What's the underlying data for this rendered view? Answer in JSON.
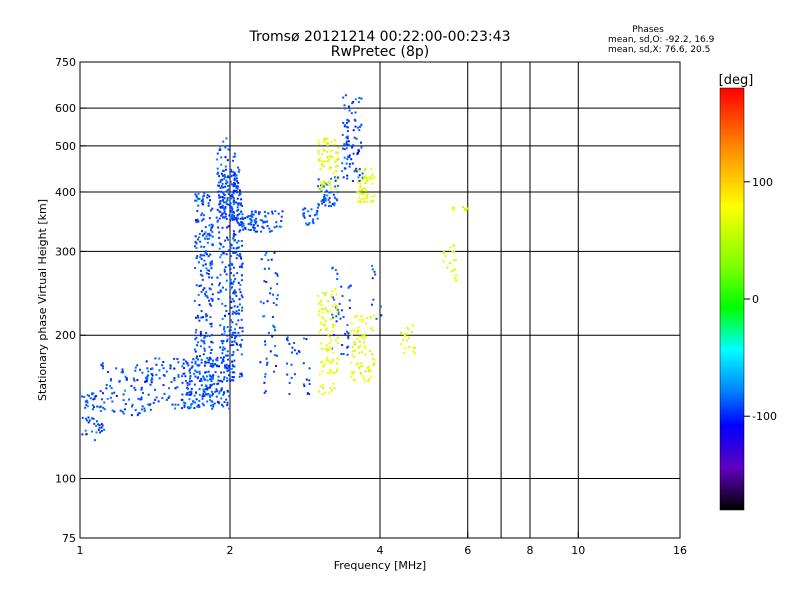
{
  "header": {
    "title_line1": "Tromsø 20121214 00:22:00-00:23:43",
    "title_line2": "RwPretec (8p)",
    "phases_label": "Phases",
    "phases_o": "mean, sd,O: -92.2, 16.9",
    "phases_x": "mean, sd,X: 76.6, 20.5"
  },
  "chart_data": {
    "type": "scatter",
    "title": "Tromsø 20121214 00:22:00-00:23:43",
    "subtitle": "RwPretec (8p)",
    "xlabel": "Frequency [MHz]",
    "ylabel": "Stationary phase Virtual Height [km]",
    "x_scale": "log",
    "y_scale": "log",
    "xlim": [
      1,
      16
    ],
    "ylim": [
      75,
      750
    ],
    "x_ticks": [
      {
        "value": 1,
        "label": "1"
      },
      {
        "value": 2,
        "label": "2"
      },
      {
        "value": 4,
        "label": "4"
      },
      {
        "value": 6,
        "label": "6"
      },
      {
        "value": 8,
        "label": "8"
      },
      {
        "value": 10,
        "label": "10"
      },
      {
        "value": 16,
        "label": "16"
      }
    ],
    "y_ticks": [
      {
        "value": 75,
        "label": "75"
      },
      {
        "value": 100,
        "label": "100"
      },
      {
        "value": 200,
        "label": "200"
      },
      {
        "value": 300,
        "label": "300"
      },
      {
        "value": 400,
        "label": "400"
      },
      {
        "value": 500,
        "label": "500"
      },
      {
        "value": 600,
        "label": "600"
      },
      {
        "value": 750,
        "label": "750"
      }
    ],
    "x_gridlines": [
      2,
      4,
      6,
      7,
      8,
      10,
      16
    ],
    "y_gridlines": [
      100,
      200,
      300,
      400,
      500,
      600
    ],
    "grid": true,
    "colorbar": {
      "label": "[deg]",
      "range": [
        -180,
        180
      ],
      "ticks": [
        {
          "value": 100,
          "label": "100"
        },
        {
          "value": 0,
          "label": "0"
        },
        {
          "value": -100,
          "label": "-100"
        }
      ]
    },
    "point_series": [
      {
        "name": "O-mode",
        "mean_phase_deg": -92.2,
        "sd_phase_deg": 16.9,
        "clusters": [
          {
            "f": [
              1.0,
              1.12
            ],
            "h": [
              120,
              152
            ],
            "n": 55
          },
          {
            "f": [
              1.1,
              1.4
            ],
            "h": [
              135,
              175
            ],
            "n": 90
          },
          {
            "f": [
              1.35,
              1.7
            ],
            "h": [
              140,
              180
            ],
            "n": 80
          },
          {
            "f": [
              1.6,
              2.0
            ],
            "h": [
              140,
              180
            ],
            "n": 160
          },
          {
            "f": [
              1.7,
              1.85
            ],
            "h": [
              150,
              400
            ],
            "n": 230
          },
          {
            "f": [
              1.88,
              2.05
            ],
            "h": [
              160,
              520
            ],
            "n": 180
          },
          {
            "f": [
              1.9,
              2.1
            ],
            "h": [
              350,
              450
            ],
            "n": 120
          },
          {
            "f": [
              2.0,
              2.12
            ],
            "h": [
              160,
              400
            ],
            "n": 150
          },
          {
            "f": [
              2.1,
              2.55
            ],
            "h": [
              330,
              365
            ],
            "n": 80
          },
          {
            "f": [
              2.3,
              2.5
            ],
            "h": [
              150,
              300
            ],
            "n": 50
          },
          {
            "f": [
              2.6,
              2.9
            ],
            "h": [
              150,
              200
            ],
            "n": 30
          },
          {
            "f": [
              2.8,
              3.0
            ],
            "h": [
              340,
              370
            ],
            "n": 25
          },
          {
            "f": [
              3.0,
              3.3
            ],
            "h": [
              370,
              430
            ],
            "n": 50
          },
          {
            "f": [
              3.35,
              3.7
            ],
            "h": [
              420,
              640
            ],
            "n": 90
          },
          {
            "f": [
              3.2,
              3.5
            ],
            "h": [
              180,
              280
            ],
            "n": 40
          },
          {
            "f": [
              3.8,
              4.2
            ],
            "h": [
              200,
              300
            ],
            "n": 10
          }
        ]
      },
      {
        "name": "X-mode",
        "mean_phase_deg": 76.6,
        "sd_phase_deg": 20.5,
        "clusters": [
          {
            "f": [
              3.0,
              3.3
            ],
            "h": [
              150,
              250
            ],
            "n": 100
          },
          {
            "f": [
              3.0,
              3.3
            ],
            "h": [
              400,
              520
            ],
            "n": 70
          },
          {
            "f": [
              3.5,
              3.9
            ],
            "h": [
              160,
              220
            ],
            "n": 80
          },
          {
            "f": [
              3.6,
              3.9
            ],
            "h": [
              380,
              450
            ],
            "n": 60
          },
          {
            "f": [
              4.4,
              4.7
            ],
            "h": [
              180,
              210
            ],
            "n": 20
          },
          {
            "f": [
              5.3,
              5.7
            ],
            "h": [
              260,
              310
            ],
            "n": 20
          },
          {
            "f": [
              5.6,
              6.0
            ],
            "h": [
              365,
              372
            ],
            "n": 12
          }
        ]
      }
    ]
  }
}
